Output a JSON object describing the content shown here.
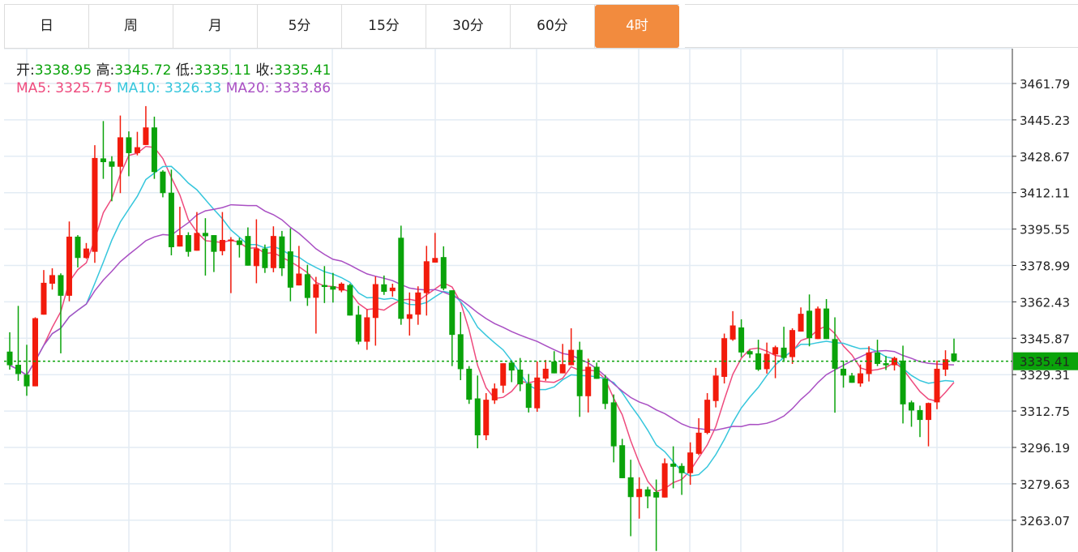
{
  "tabs": [
    {
      "label": "日",
      "active": false
    },
    {
      "label": "周",
      "active": false
    },
    {
      "label": "月",
      "active": false
    },
    {
      "label": "5分",
      "active": false
    },
    {
      "label": "15分",
      "active": false
    },
    {
      "label": "30分",
      "active": false
    },
    {
      "label": "60分",
      "active": false
    },
    {
      "label": "4时",
      "active": true
    }
  ],
  "colors": {
    "active_tab": "#f28b3e",
    "up": "#f21b0c",
    "down": "#0aa30a",
    "ma5": "#ee4a7d",
    "ma10": "#35c6dc",
    "ma20": "#a94fc3",
    "last_price": "#0aa30a"
  },
  "ohlc_info": {
    "open_label": "开:",
    "open": "3338.95",
    "high_label": "高:",
    "high": "3345.72",
    "low_label": "低:",
    "low": "3335.11",
    "close_label": "收:",
    "close": "3335.41"
  },
  "ma_info": {
    "ma5_label": "MA5:",
    "ma5": "3325.75",
    "ma10_label": "MA10:",
    "ma10": "3326.33",
    "ma20_label": "MA20:",
    "ma20": "3333.86"
  },
  "chart_data": {
    "type": "candlestick",
    "convention": "red up, green down",
    "ylim": [
      3246.51,
      3478.35
    ],
    "yticks": [
      "3461.79",
      "3445.23",
      "3428.67",
      "3412.11",
      "3395.55",
      "3378.99",
      "3362.43",
      "3345.87",
      "3329.31",
      "3312.75",
      "3296.19",
      "3279.63",
      "3263.07",
      "3246.51"
    ],
    "last_price": 3335.41,
    "last_price_label": "3335.41",
    "grid": true,
    "moving_averages": [
      5,
      10,
      20
    ],
    "open": [
      3339.8,
      3333.8,
      3329.3,
      3324.0,
      3356.6,
      3370.7,
      3374.6,
      3365.2,
      3392.1,
      3382.4,
      3385.2,
      3427.7,
      3426.3,
      3423.9,
      3437.3,
      3430.1,
      3433.8,
      3441.8,
      3421.7,
      3412.1,
      3387.6,
      3392.8,
      3385.7,
      3393.8,
      3392.8,
      3385.5,
      3390.0,
      3390.4,
      3392.4,
      3378.7,
      3386.7,
      3377.8,
      3392.2,
      3385.4,
      3369.9,
      3375.0,
      3364.3,
      3370.1,
      3369.5,
      3367.6,
      3370.1,
      3356.6,
      3344.3,
      3355.1,
      3370.4,
      3367.3,
      3391.6,
      3354.7,
      3356.6,
      3366.4,
      3380.3,
      3382.8,
      3367.7,
      3347.7,
      3332.0,
      3318.5,
      3301.7,
      3317.6,
      3324.3,
      3334.8,
      3331.6,
      3325.3,
      3314.0,
      3327.5,
      3335.3,
      3329.9,
      3333.6,
      3340.6,
      3319.5,
      3332.9,
      3327.5,
      3316.7,
      3297.2,
      3282.6,
      3273.6,
      3277.1,
      3275.9,
      3273.4,
      3288.8,
      3287.8,
      3284.5,
      3293.3,
      3302.8,
      3317.3,
      3328.3,
      3345.3,
      3350.8,
      3340.0,
      3339.0,
      3331.8,
      3338.5,
      3341.6,
      3337.3,
      3348.9,
      3358.4,
      3345.5,
      3359.4,
      3345.5,
      3332.0,
      3328.9,
      3325.3,
      3329.6,
      3339.4,
      3334.5,
      3333.6,
      3335.7,
      3316.7,
      3313.2,
      3308.7,
      3316.7,
      3331.6,
      3338.95
    ],
    "high": [
      3348.6,
      3360.6,
      3342.9,
      3355.4,
      3376.9,
      3377.7,
      3375.4,
      3399.0,
      3392.8,
      3389.2,
      3433.7,
      3444.7,
      3428.7,
      3447.2,
      3440.0,
      3439.8,
      3451.5,
      3446.7,
      3422.3,
      3422.6,
      3405.7,
      3394.1,
      3403.3,
      3400.5,
      3392.8,
      3403.3,
      3391.9,
      3391.6,
      3396.3,
      3400.0,
      3388.5,
      3396.8,
      3394.7,
      3395.9,
      3387.9,
      3379.3,
      3373.8,
      3378.7,
      3375.6,
      3371.3,
      3370.7,
      3360.6,
      3359.0,
      3374.0,
      3374.4,
      3370.7,
      3397.1,
      3366.7,
      3369.5,
      3387.9,
      3393.8,
      3387.7,
      3367.7,
      3357.8,
      3333.2,
      3328.9,
      3320.9,
      3325.3,
      3334.5,
      3335.7,
      3336.9,
      3329.6,
      3335.3,
      3336.0,
      3340.0,
      3343.3,
      3350.4,
      3344.3,
      3336.6,
      3334.8,
      3329.2,
      3320.3,
      3300.1,
      3290.6,
      3282.6,
      3278.3,
      3281.6,
      3291.2,
      3296.7,
      3289.0,
      3298.5,
      3309.5,
      3320.9,
      3332.4,
      3348.0,
      3358.2,
      3354.5,
      3340.6,
      3345.2,
      3343.9,
      3342.5,
      3351.1,
      3350.4,
      3359.9,
      3365.8,
      3360.3,
      3363.7,
      3355.4,
      3335.7,
      3330.1,
      3333.9,
      3342.2,
      3345.2,
      3337.8,
      3337.5,
      3342.5,
      3317.5,
      3315.2,
      3316.6,
      3335.7,
      3340.4,
      3345.72
    ],
    "low": [
      3331.6,
      3326.5,
      3319.7,
      3324.0,
      3356.6,
      3368.0,
      3339.0,
      3362.7,
      3378.1,
      3382.0,
      3380.2,
      3418.4,
      3408.2,
      3411.9,
      3419.6,
      3429.1,
      3433.8,
      3418.4,
      3410.0,
      3383.6,
      3387.6,
      3383.0,
      3385.7,
      3374.4,
      3376.0,
      3383.6,
      3366.4,
      3382.6,
      3378.9,
      3370.9,
      3375.6,
      3375.9,
      3374.2,
      3362.7,
      3369.9,
      3360.6,
      3348.0,
      3361.9,
      3362.1,
      3366.8,
      3356.2,
      3343.1,
      3340.6,
      3342.5,
      3365.6,
      3364.8,
      3352.0,
      3347.1,
      3352.0,
      3356.2,
      3380.3,
      3367.7,
      3333.2,
      3326.8,
      3316.0,
      3295.8,
      3299.5,
      3316.0,
      3321.0,
      3325.9,
      3321.8,
      3312.1,
      3312.4,
      3326.5,
      3329.9,
      3329.9,
      3333.6,
      3310.1,
      3312.1,
      3327.4,
      3313.6,
      3289.4,
      3282.2,
      3255.8,
      3263.8,
      3268.5,
      3249.1,
      3273.4,
      3277.6,
      3274.6,
      3279.2,
      3292.7,
      3302.2,
      3314.4,
      3325.3,
      3344.7,
      3337.3,
      3336.9,
      3331.0,
      3329.8,
      3327.7,
      3335.1,
      3334.2,
      3348.9,
      3342.2,
      3345.5,
      3345.5,
      3312.0,
      3323.4,
      3325.6,
      3323.8,
      3326.2,
      3333.2,
      3331.4,
      3331.2,
      3307.1,
      3305.6,
      3300.9,
      3296.7,
      3313.6,
      3328.7,
      3335.11
    ],
    "close": [
      3333.6,
      3329.6,
      3324.0,
      3355.0,
      3371.1,
      3374.6,
      3365.2,
      3392.1,
      3382.4,
      3386.7,
      3427.9,
      3426.0,
      3423.9,
      3437.3,
      3430.1,
      3432.8,
      3441.8,
      3421.5,
      3411.9,
      3387.3,
      3392.8,
      3385.2,
      3393.8,
      3392.3,
      3385.2,
      3390.6,
      3390.8,
      3388.3,
      3378.9,
      3386.7,
      3377.8,
      3392.4,
      3377.7,
      3368.9,
      3375.3,
      3364.2,
      3370.5,
      3369.2,
      3368.0,
      3370.7,
      3356.2,
      3344.3,
      3355.4,
      3370.5,
      3367.0,
      3368.9,
      3354.7,
      3356.8,
      3366.7,
      3380.9,
      3382.4,
      3368.5,
      3347.4,
      3331.8,
      3317.9,
      3301.7,
      3317.9,
      3323.0,
      3334.5,
      3331.2,
      3324.9,
      3314.2,
      3328.0,
      3332.0,
      3329.9,
      3334.1,
      3340.6,
      3319.5,
      3332.9,
      3327.4,
      3316.0,
      3296.7,
      3282.2,
      3273.6,
      3277.3,
      3273.9,
      3273.4,
      3289.0,
      3287.4,
      3284.5,
      3293.9,
      3302.9,
      3317.9,
      3328.9,
      3345.9,
      3351.7,
      3339.4,
      3338.5,
      3331.6,
      3338.8,
      3341.8,
      3336.9,
      3349.6,
      3357.0,
      3345.9,
      3359.4,
      3345.5,
      3332.0,
      3328.9,
      3325.6,
      3329.9,
      3339.4,
      3334.2,
      3333.6,
      3336.9,
      3315.8,
      3313.0,
      3308.7,
      3316.4,
      3332.0,
      3336.3,
      3335.41
    ]
  }
}
